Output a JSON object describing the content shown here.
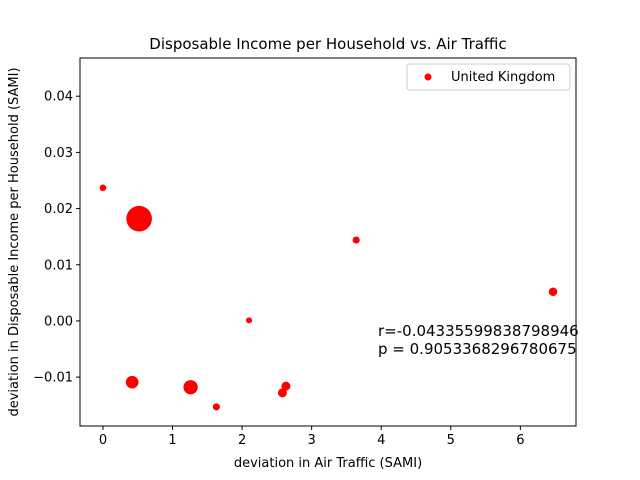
{
  "chart_data": {
    "type": "scatter",
    "title": "Disposable Income per Household vs. Air Traffic",
    "xlabel": "deviation in Air Traffic (SAMI)",
    "ylabel": "deviation in Disposable Income per Household (SAMI)",
    "xlim": [
      -0.33,
      6.8
    ],
    "ylim": [
      -0.0187,
      0.0468
    ],
    "xticks": [
      0,
      1,
      2,
      3,
      4,
      5,
      6
    ],
    "xtick_labels": [
      "0",
      "1",
      "2",
      "3",
      "4",
      "5",
      "6"
    ],
    "yticks": [
      -0.01,
      0.0,
      0.01,
      0.02,
      0.03,
      0.04
    ],
    "ytick_labels": [
      "−0.01",
      "0.00",
      "0.01",
      "0.02",
      "0.03",
      "0.04"
    ],
    "color": "#ff0000",
    "legend_position": "top-right",
    "series": [
      {
        "name": "United Kingdom",
        "points": [
          {
            "x": 0.0,
            "y": 0.0237,
            "s": 6
          },
          {
            "x": 0.52,
            "y": 0.0182,
            "s": 90
          },
          {
            "x": 0.42,
            "y": -0.0109,
            "s": 22
          },
          {
            "x": 1.26,
            "y": -0.0118,
            "s": 28
          },
          {
            "x": 1.63,
            "y": -0.0153,
            "s": 7
          },
          {
            "x": 2.1,
            "y": 0.0001,
            "s": 5
          },
          {
            "x": 2.58,
            "y": -0.0128,
            "s": 11
          },
          {
            "x": 2.63,
            "y": -0.0116,
            "s": 11
          },
          {
            "x": 3.64,
            "y": 0.0144,
            "s": 7
          },
          {
            "x": 6.47,
            "y": 0.0052,
            "s": 10
          }
        ]
      }
    ],
    "annotation_lines": [
      "r=-0.04335599838798946",
      "p = 0.9053368296780675"
    ]
  }
}
